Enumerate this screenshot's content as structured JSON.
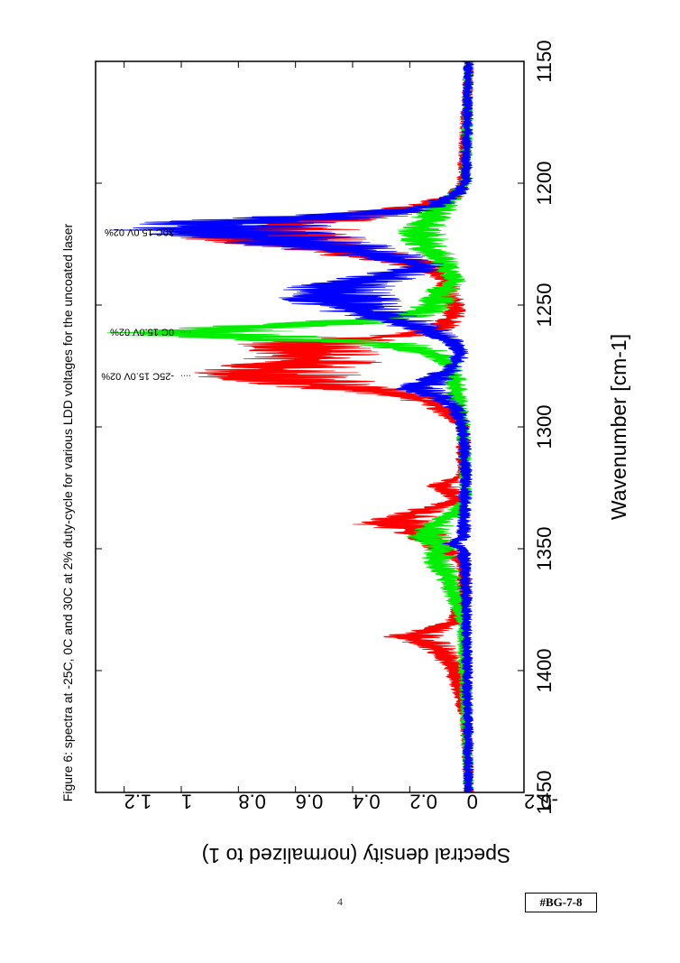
{
  "figure_caption": "Figure 6: spectra at -25C, 0C and 30C at 2% duty-cycle for various LDD voltages for the uncoated laser",
  "page_number": "4",
  "doc_tag": "#BG-7-8",
  "chart_data": {
    "type": "line",
    "title": "",
    "xlabel": "Wavenumber [cm-1]",
    "ylabel": "Spectral density (normalized to 1)",
    "xlim": [
      1150,
      1450
    ],
    "ylim": [
      -0.2,
      1.3
    ],
    "x_ticks": [
      "1150",
      "1200",
      "1250",
      "1300",
      "1350",
      "1400",
      "1450"
    ],
    "y_ticks": [
      "-0.2",
      "0",
      "0.2",
      "0.4",
      "0.6",
      "0.8",
      "1",
      "1.2"
    ],
    "orientation": "rotated 90 degrees clockwise",
    "series": [
      {
        "name": "",
        "color": "#ff0000",
        "x": [
          1150,
          1200,
          1205,
          1210,
          1215,
          1220,
          1224,
          1228,
          1232,
          1236,
          1240,
          1244,
          1248,
          1252,
          1256,
          1259,
          1262,
          1266,
          1270,
          1274,
          1278,
          1282,
          1286,
          1290,
          1300,
          1320,
          1324,
          1330,
          1334,
          1338,
          1340,
          1342,
          1346,
          1350,
          1356,
          1370,
          1380,
          1384,
          1386,
          1390,
          1395,
          1400,
          1420,
          1450
        ],
        "y": [
          0.0,
          0.02,
          0.05,
          0.2,
          0.55,
          0.8,
          0.7,
          0.45,
          0.25,
          0.12,
          0.07,
          0.1,
          0.06,
          0.05,
          0.07,
          0.1,
          0.2,
          0.6,
          0.55,
          0.6,
          0.75,
          0.6,
          0.3,
          0.12,
          0.02,
          0.02,
          0.1,
          0.04,
          0.15,
          0.25,
          0.3,
          0.2,
          0.15,
          0.1,
          0.02,
          0.02,
          0.05,
          0.15,
          0.22,
          0.12,
          0.08,
          0.05,
          0.01,
          0.0
        ]
      },
      {
        "name": "",
        "color": "#00ee00",
        "x": [
          1150,
          1200,
          1205,
          1210,
          1215,
          1220,
          1225,
          1230,
          1235,
          1240,
          1244,
          1248,
          1252,
          1256,
          1260,
          1262,
          1264,
          1266,
          1270,
          1275,
          1280,
          1290,
          1300,
          1330,
          1335,
          1340,
          1345,
          1350,
          1355,
          1360,
          1380,
          1450
        ],
        "y": [
          0.0,
          0.01,
          0.05,
          0.1,
          0.15,
          0.18,
          0.16,
          0.12,
          0.08,
          0.05,
          0.1,
          0.12,
          0.15,
          0.35,
          0.9,
          0.98,
          0.7,
          0.3,
          0.12,
          0.06,
          0.05,
          0.04,
          0.02,
          0.01,
          0.05,
          0.12,
          0.15,
          0.1,
          0.12,
          0.08,
          0.02,
          0.0
        ]
      },
      {
        "name": "",
        "color": "#0000ff",
        "x": [
          1150,
          1200,
          1205,
          1210,
          1213,
          1216,
          1219,
          1222,
          1226,
          1230,
          1234,
          1238,
          1242,
          1246,
          1250,
          1254,
          1260,
          1266,
          1270,
          1275,
          1280,
          1284,
          1288,
          1292,
          1300,
          1320,
          1345,
          1348,
          1350,
          1360,
          1450
        ],
        "y": [
          0.0,
          0.01,
          0.05,
          0.15,
          0.45,
          0.85,
          0.95,
          0.75,
          0.55,
          0.3,
          0.15,
          0.3,
          0.45,
          0.5,
          0.45,
          0.35,
          0.15,
          0.05,
          0.03,
          0.05,
          0.12,
          0.2,
          0.1,
          0.05,
          0.02,
          0.01,
          0.02,
          0.06,
          0.02,
          0.01,
          0.0
        ]
      }
    ],
    "annotations": [
      {
        "text": "30C 15.0V 02%",
        "x": 1220,
        "y": 1.0
      },
      {
        "text": "0C 15.0V 02%",
        "x": 1261,
        "y": 1.0
      },
      {
        "text": "-25C 15.0V 02%",
        "x": 1279,
        "y": 1.0
      }
    ]
  }
}
